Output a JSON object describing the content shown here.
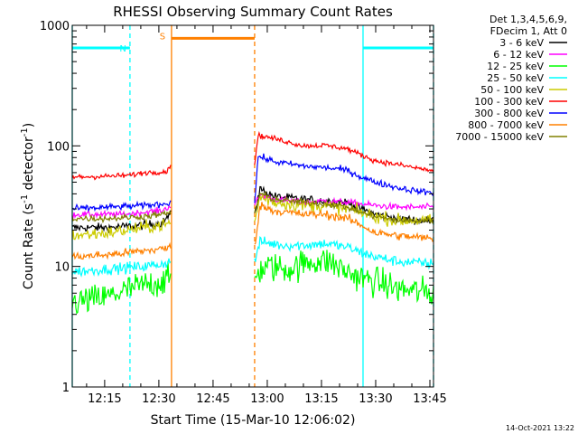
{
  "chart_data": {
    "type": "line",
    "title": "RHESSI Observing Summary Count Rates",
    "xlabel": "Start Time (15-Mar-10 12:06:02)",
    "ylabel_main": "Count Rate (s",
    "ylabel_exp1": "-1",
    "ylabel_mid": " detector",
    "ylabel_exp2": "-1",
    "ylabel_end": ")",
    "x_unit": "minutes since 12:00",
    "xlim": [
      6.03,
      106.0
    ],
    "ylim": [
      1,
      1000
    ],
    "yscale": "log",
    "x_ticks": [
      {
        "x": 15,
        "label": "12:15"
      },
      {
        "x": 30,
        "label": "12:30"
      },
      {
        "x": 45,
        "label": "12:45"
      },
      {
        "x": 60,
        "label": "13:00"
      },
      {
        "x": 75,
        "label": "13:15"
      },
      {
        "x": 90,
        "label": "13:30"
      },
      {
        "x": 105,
        "label": "13:45"
      }
    ],
    "y_ticks": [
      {
        "y": 1,
        "label": "1"
      },
      {
        "y": 10,
        "label": "10"
      },
      {
        "y": 100,
        "label": "100"
      },
      {
        "y": 1000,
        "label": "1000"
      }
    ],
    "legend": {
      "position": "top-right",
      "header": [
        "Det 1,3,4,5,6,9,",
        "FDecim 1, Att 0"
      ]
    },
    "gaps": [
      [
        33.5,
        56.5
      ]
    ],
    "series": [
      {
        "name": "3 - 6 keV",
        "color": "#000000",
        "noise": 0.04,
        "points": [
          [
            6.03,
            21
          ],
          [
            16,
            21
          ],
          [
            26,
            22
          ],
          [
            31,
            23
          ],
          [
            32.5,
            26
          ],
          [
            33.5,
            27
          ],
          [
            56.5,
            27
          ],
          [
            58,
            44
          ],
          [
            62,
            38
          ],
          [
            70,
            36
          ],
          [
            76,
            35
          ],
          [
            82,
            34
          ],
          [
            86,
            30
          ],
          [
            90,
            27
          ],
          [
            96,
            25
          ],
          [
            102,
            24
          ],
          [
            106,
            24
          ]
        ]
      },
      {
        "name": "6 - 12 keV",
        "color": "#ff00ff",
        "noise": 0.03,
        "points": [
          [
            6.03,
            27
          ],
          [
            20,
            27
          ],
          [
            25,
            28
          ],
          [
            31,
            29
          ],
          [
            32.5,
            31
          ],
          [
            33.5,
            32
          ],
          [
            56.5,
            32
          ],
          [
            58,
            39
          ],
          [
            62,
            36
          ],
          [
            70,
            34
          ],
          [
            76,
            35
          ],
          [
            82,
            34
          ],
          [
            86,
            33
          ],
          [
            90,
            32
          ],
          [
            96,
            31
          ],
          [
            102,
            31
          ],
          [
            106,
            31
          ]
        ]
      },
      {
        "name": "12 - 25 keV",
        "color": "#00ff00",
        "noise": 0.14,
        "points": [
          [
            6.03,
            5
          ],
          [
            15,
            5.5
          ],
          [
            22,
            6.5
          ],
          [
            26,
            7
          ],
          [
            31,
            7.5
          ],
          [
            33.5,
            8
          ],
          [
            56.5,
            8
          ],
          [
            57.5,
            9
          ],
          [
            60,
            10
          ],
          [
            66,
            9.5
          ],
          [
            72,
            11
          ],
          [
            77,
            11
          ],
          [
            82,
            9
          ],
          [
            86,
            8
          ],
          [
            90,
            7.5
          ],
          [
            96,
            6.5
          ],
          [
            106,
            6
          ]
        ]
      },
      {
        "name": "25 - 50 keV",
        "color": "#00ffff",
        "noise": 0.05,
        "points": [
          [
            6.03,
            9
          ],
          [
            16,
            9.5
          ],
          [
            26,
            10
          ],
          [
            31,
            10.5
          ],
          [
            33.5,
            11
          ],
          [
            56.5,
            11
          ],
          [
            58,
            16
          ],
          [
            64,
            15
          ],
          [
            70,
            15
          ],
          [
            76,
            15.5
          ],
          [
            82,
            14.5
          ],
          [
            86,
            13
          ],
          [
            90,
            12
          ],
          [
            96,
            11
          ],
          [
            106,
            10.5
          ]
        ]
      },
      {
        "name": "50 - 100 keV",
        "color": "#cccc00",
        "noise": 0.06,
        "points": [
          [
            6.03,
            18
          ],
          [
            16,
            19
          ],
          [
            26,
            21
          ],
          [
            31,
            22
          ],
          [
            33.5,
            23
          ],
          [
            56.5,
            23
          ],
          [
            58,
            38
          ],
          [
            62,
            34
          ],
          [
            70,
            32
          ],
          [
            76,
            32
          ],
          [
            82,
            30
          ],
          [
            86,
            28
          ],
          [
            90,
            26
          ],
          [
            96,
            24
          ],
          [
            106,
            24
          ]
        ]
      },
      {
        "name": "100 - 300 keV",
        "color": "#ff0000",
        "noise": 0.025,
        "points": [
          [
            6.03,
            55
          ],
          [
            16,
            56
          ],
          [
            22,
            57
          ],
          [
            26,
            60
          ],
          [
            31,
            61
          ],
          [
            32.5,
            62
          ],
          [
            33.5,
            72
          ],
          [
            56.5,
            72
          ],
          [
            57.5,
            122
          ],
          [
            62,
            115
          ],
          [
            70,
            100
          ],
          [
            76,
            101
          ],
          [
            82,
            95
          ],
          [
            86,
            84
          ],
          [
            90,
            75
          ],
          [
            96,
            70
          ],
          [
            102,
            65
          ],
          [
            106,
            62
          ]
        ]
      },
      {
        "name": "300 - 800 keV",
        "color": "#0000ff",
        "noise": 0.03,
        "points": [
          [
            6.03,
            30
          ],
          [
            16,
            31
          ],
          [
            26,
            32
          ],
          [
            31,
            33
          ],
          [
            33.5,
            34
          ],
          [
            56.5,
            34
          ],
          [
            57.5,
            82
          ],
          [
            62,
            74
          ],
          [
            70,
            68
          ],
          [
            76,
            66
          ],
          [
            82,
            63
          ],
          [
            86,
            55
          ],
          [
            90,
            50
          ],
          [
            96,
            45
          ],
          [
            102,
            42
          ],
          [
            106,
            41
          ]
        ]
      },
      {
        "name": "800 - 7000 keV",
        "color": "#ff8000",
        "noise": 0.04,
        "points": [
          [
            6.03,
            12
          ],
          [
            16,
            12.5
          ],
          [
            26,
            13.5
          ],
          [
            31,
            14
          ],
          [
            33.5,
            14.5
          ],
          [
            56.5,
            14.5
          ],
          [
            58,
            32
          ],
          [
            62,
            29
          ],
          [
            70,
            27
          ],
          [
            76,
            27
          ],
          [
            82,
            25
          ],
          [
            86,
            22
          ],
          [
            90,
            19
          ],
          [
            96,
            18
          ],
          [
            106,
            17
          ]
        ]
      },
      {
        "name": "7000 - 15000 keV",
        "color": "#808000",
        "noise": 0.03,
        "points": [
          [
            6.03,
            25
          ],
          [
            16,
            25
          ],
          [
            26,
            26
          ],
          [
            31,
            27
          ],
          [
            33.5,
            28
          ],
          [
            56.5,
            28
          ],
          [
            58,
            40
          ],
          [
            62,
            36
          ],
          [
            70,
            34
          ],
          [
            76,
            33
          ],
          [
            82,
            31
          ],
          [
            86,
            28
          ],
          [
            90,
            26
          ],
          [
            96,
            24
          ],
          [
            106,
            24
          ]
        ]
      }
    ],
    "annotations": [
      {
        "type": "interval",
        "label": "N",
        "start": 6.03,
        "end": 22.0,
        "level": 650,
        "color": "#00ffff"
      },
      {
        "type": "interval",
        "label": "",
        "start": 86.5,
        "end": 106.0,
        "level": 650,
        "color": "#00ffff"
      },
      {
        "type": "interval",
        "label": "S",
        "start": 33.5,
        "end": 56.5,
        "level": 780,
        "color": "#ff8000"
      }
    ],
    "markers": [
      {
        "x": 6.03,
        "color": "#00ffff",
        "style": "solid"
      },
      {
        "x": 22.0,
        "color": "#00ffff",
        "style": "dashed"
      },
      {
        "x": 33.5,
        "color": "#ff8000",
        "style": "solid"
      },
      {
        "x": 56.5,
        "color": "#ff8000",
        "style": "dashed"
      },
      {
        "x": 86.5,
        "color": "#00ffff",
        "style": "solid"
      },
      {
        "x": 106.0,
        "color": "#00ffff",
        "style": "dashed"
      }
    ],
    "timestamp": "14-Oct-2021 13:22"
  }
}
